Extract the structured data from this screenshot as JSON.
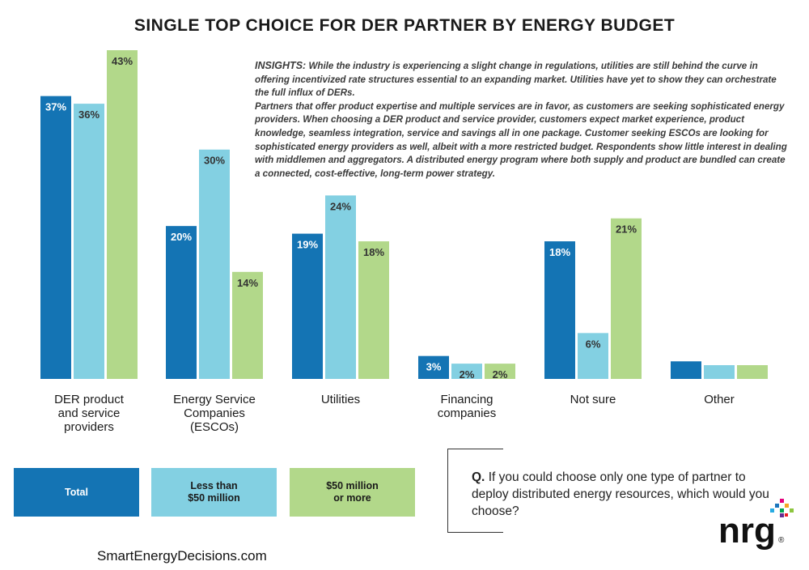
{
  "title": "SINGLE TOP CHOICE FOR DER PARTNER BY ENERGY BUDGET",
  "insights": {
    "heading": "INSIGHTS:",
    "paragraph1": "While the industry is experiencing a slight change in regulations, utilities are still behind the curve in offering incentivized rate structures essential to an expanding market. Utilities have yet to show they can orchestrate the full influx of DERs.",
    "paragraph2": "Partners that offer product expertise and multiple services are in favor, as customers are seeking sophisticated energy providers. When choosing a DER product and service provider, customers expect market experience, product knowledge, seamless integration, service and savings all in one package. Customer seeking ESCOs are looking for sophisticated energy providers as well, albeit with a more restricted budget. Respondents show little interest in dealing with middlemen and aggregators. A distributed energy program where both supply and product are bundled can create a connected, cost-effective, long-term power strategy."
  },
  "chart_data": {
    "type": "bar",
    "title": "SINGLE TOP CHOICE FOR DER PARTNER BY ENERGY BUDGET",
    "categories": [
      [
        "DER product",
        "and service",
        "providers"
      ],
      [
        "Energy Service",
        "Companies",
        "(ESCOs)"
      ],
      [
        "Utilities"
      ],
      [
        "Financing",
        "companies"
      ],
      [
        "Not sure"
      ],
      [
        "Other"
      ]
    ],
    "series": [
      {
        "name": "Total",
        "color": "#1474b4",
        "label_color": "#ffffff",
        "values": [
          37,
          20,
          19,
          3,
          18,
          2.3
        ],
        "labels": [
          "37%",
          "20%",
          "19%",
          "3%",
          "18%",
          ""
        ]
      },
      {
        "name": "Less than $50 million",
        "color": "#83d0e2",
        "label_color": "#333333",
        "values": [
          36,
          30,
          24,
          2,
          6,
          1.8
        ],
        "labels": [
          "36%",
          "30%",
          "24%",
          "2%",
          "6%",
          ""
        ]
      },
      {
        "name": "$50 million or more",
        "color": "#b2d88a",
        "label_color": "#333333",
        "values": [
          43,
          14,
          18,
          2,
          21,
          1.8
        ],
        "labels": [
          "43%",
          "14%",
          "18%",
          "2%",
          "21%",
          ""
        ]
      }
    ],
    "ylim": [
      0,
      43
    ],
    "grid": false,
    "legend_position": "bottom-left"
  },
  "legend": [
    {
      "lines": [
        "Total"
      ],
      "color": "#1474b4",
      "text_color": "#ffffff"
    },
    {
      "lines": [
        "Less than",
        "$50 million"
      ],
      "color": "#83d0e2",
      "text_color": "#1a1a1a"
    },
    {
      "lines": [
        "$50 million",
        "or more"
      ],
      "color": "#b2d88a",
      "text_color": "#1a1a1a"
    }
  ],
  "question": {
    "prefix": "Q.",
    "text": "If you could choose only one type of partner to deploy distributed energy resources, which would you choose?"
  },
  "site": "SmartEnergyDecisions.com",
  "logo": {
    "text": "nrg",
    "mark": "®",
    "name": "nrg-logo"
  }
}
